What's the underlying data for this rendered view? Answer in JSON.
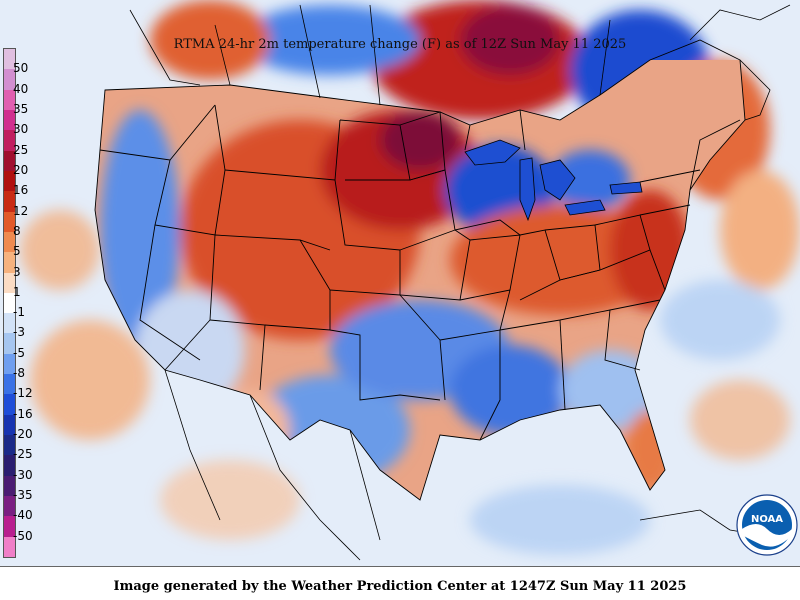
{
  "title": "RTMA 24-hr 2m temperature change (F) as of 12Z Sun May 11 2025",
  "credit": "Image generated by the Weather Prediction Center at 1247Z Sun May 11 2025",
  "logo": {
    "text": "NOAA",
    "colors": {
      "ring": "#ffffff",
      "sky": "#0a5fb0",
      "wave": "#ffffff"
    }
  },
  "legend": {
    "labels": [
      "50",
      "40",
      "35",
      "30",
      "25",
      "20",
      "16",
      "12",
      "8",
      "5",
      "3",
      "1",
      "-1",
      "-3",
      "-5",
      "-8",
      "-12",
      "-16",
      "-20",
      "-25",
      "-30",
      "-35",
      "-40",
      "-50"
    ],
    "colors": [
      "#e0bfe0",
      "#d28fd0",
      "#e05fb0",
      "#d02f8f",
      "#c01f5f",
      "#a00f2f",
      "#b01010",
      "#c82a14",
      "#e25a2a",
      "#ef8a50",
      "#f6b27e",
      "#fbdcc4",
      "#ffffff",
      "#d2e2f7",
      "#a6c6f0",
      "#6f9ff0",
      "#3a72e6",
      "#1e4ed8",
      "#1634b0",
      "#1a2a88",
      "#2a1e70",
      "#4a1c72",
      "#7a1f82",
      "#b81f8f",
      "#f07fc8"
    ]
  },
  "map_colors": {
    "water": "#dfe9f7",
    "land_default": "#e6f0fb",
    "border": "#000000"
  }
}
